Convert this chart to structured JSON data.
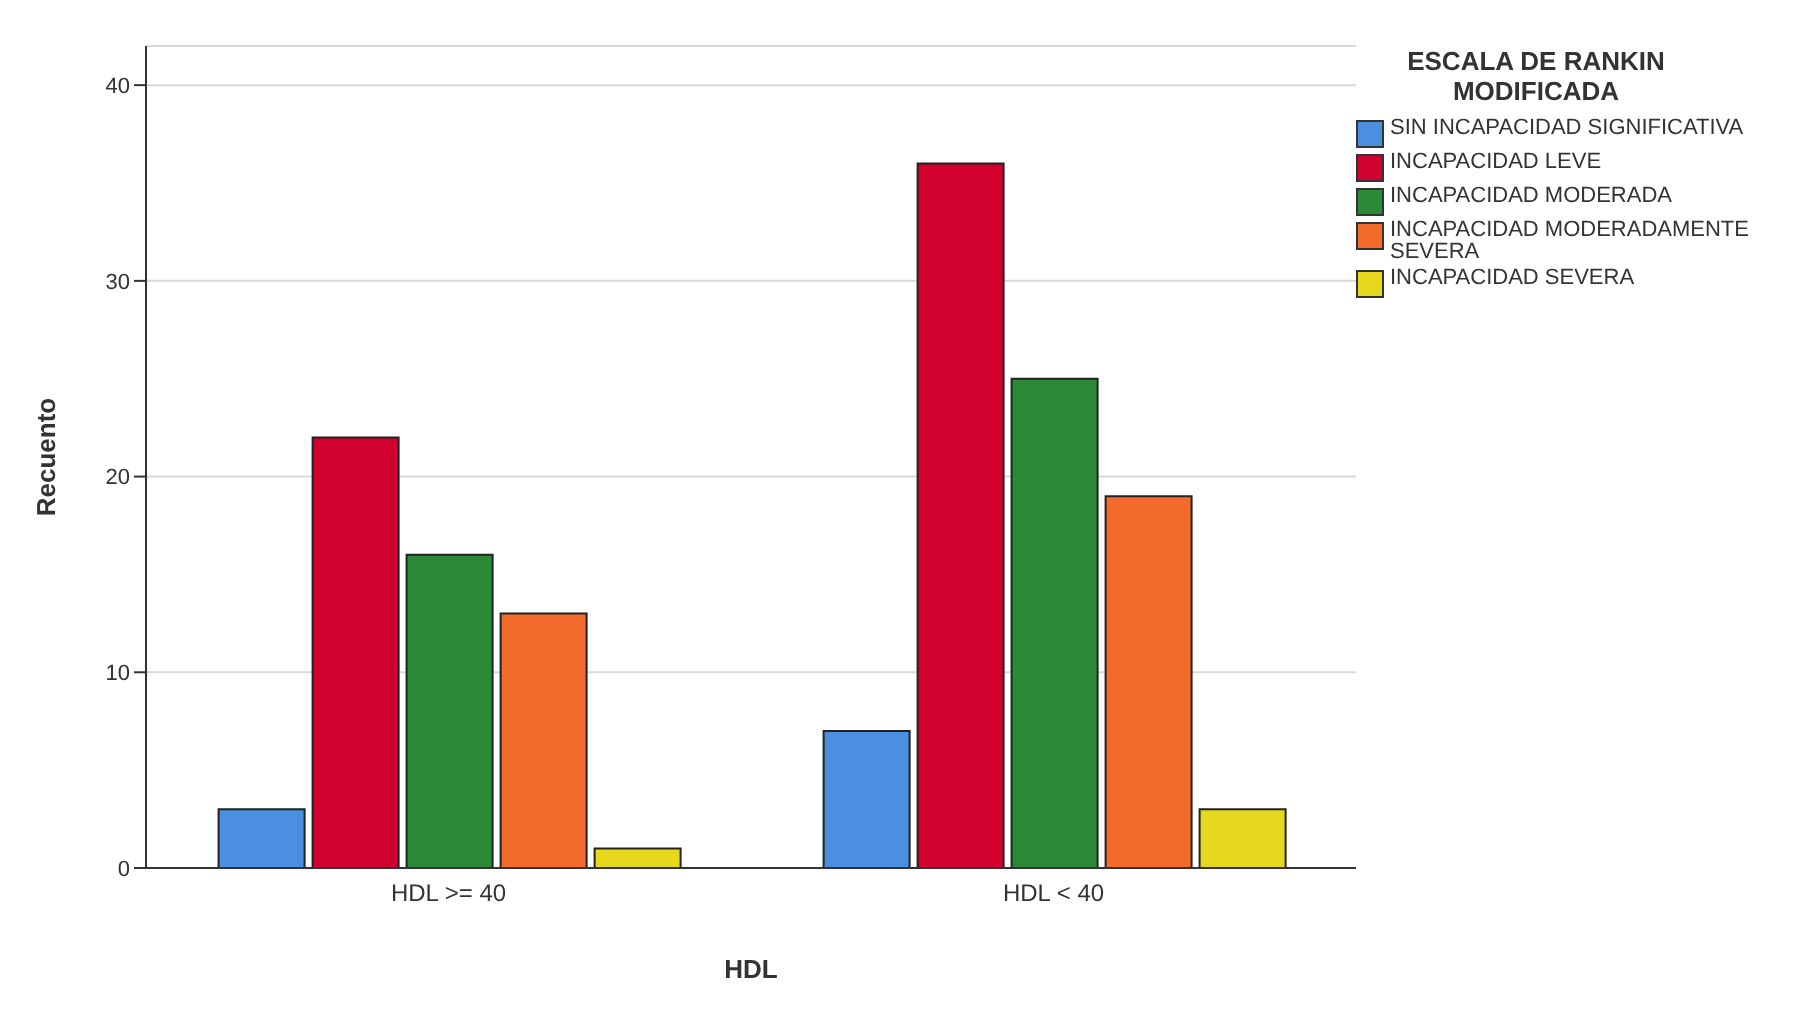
{
  "chart_data": {
    "type": "bar",
    "xlabel": "HDL",
    "ylabel": "Recuento",
    "legend_title": "ESCALA DE RANKIN MODIFICADA",
    "categories": [
      "HDL >= 40",
      "HDL < 40"
    ],
    "series": [
      {
        "name": "SIN INCAPACIDAD SIGNIFICATIVA",
        "color": "#4a8fe0",
        "values": [
          3,
          7
        ]
      },
      {
        "name": "INCAPACIDAD LEVE",
        "color": "#d2002f",
        "values": [
          22,
          36
        ]
      },
      {
        "name": "INCAPACIDAD MODERADA",
        "color": "#2b8a35",
        "values": [
          16,
          25
        ]
      },
      {
        "name": "INCAPACIDAD MODERADAMENTE SEVERA",
        "color": "#f26b2b",
        "values": [
          13,
          19
        ]
      },
      {
        "name": "INCAPACIDAD SEVERA",
        "color": "#e6d81c",
        "values": [
          1,
          3
        ]
      }
    ],
    "ylim": [
      0,
      42
    ],
    "yticks": [
      0,
      10,
      20,
      30,
      40
    ],
    "grid": "y",
    "legend": "right"
  }
}
